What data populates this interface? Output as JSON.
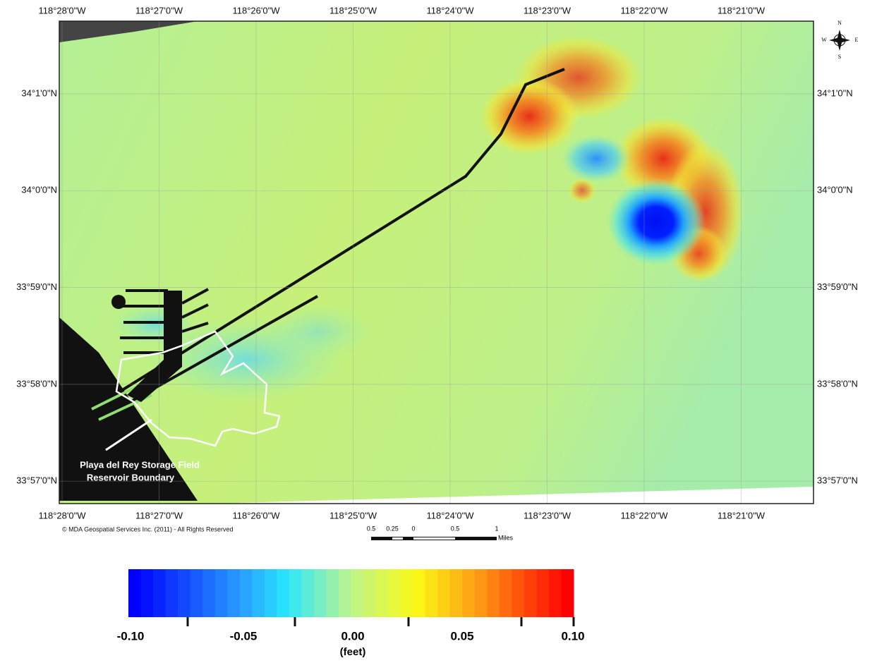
{
  "map": {
    "lon_labels": [
      "118°28'0\"W",
      "118°27'0\"W",
      "118°26'0\"W",
      "118°25'0\"W",
      "118°24'0\"W",
      "118°23'0\"W",
      "118°22'0\"W",
      "118°21'0\"W"
    ],
    "lat_labels": [
      "34°1'0\"N",
      "34°0'0\"N",
      "33°59'0\"N",
      "33°58'0\"N",
      "33°57'0\"N"
    ],
    "annotation": [
      "Playa del Rey Storage Field",
      "Reservoir Boundary"
    ],
    "copyright": "© MDA Geospatial Services Inc.  (2011) -  All Rights Reserved",
    "scale_bar": {
      "labels": [
        "0.5",
        "0.25",
        "0",
        "0.5",
        "1"
      ],
      "unit": "Miles"
    },
    "compass": [
      "N",
      "S",
      "W",
      "E"
    ]
  },
  "colorbar": {
    "tick_labels": [
      "-0.10",
      "-0.05",
      "0.00",
      "0.05",
      "0.10"
    ],
    "unit": "(feet)"
  }
}
